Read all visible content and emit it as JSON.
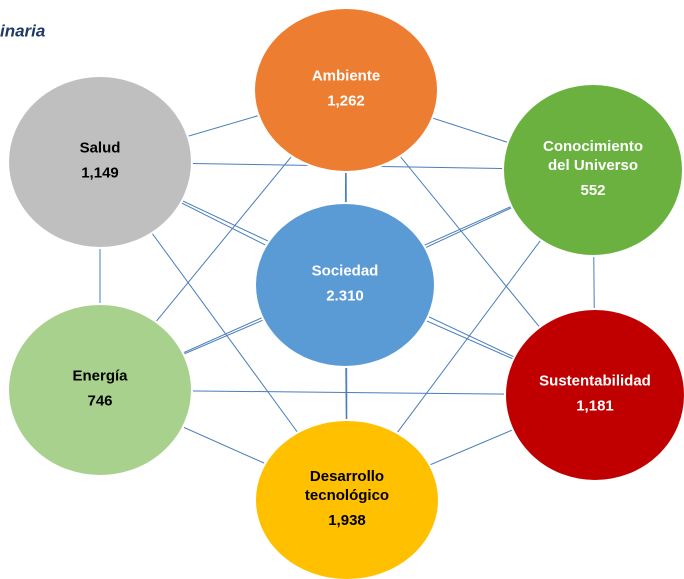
{
  "title": "inaria",
  "nodes": [
    {
      "label": [
        "Ambiente"
      ],
      "value": "1,262"
    },
    {
      "label": [
        "Salud"
      ],
      "value": "1,149"
    },
    {
      "label": [
        "Conocimiento",
        "del Universo"
      ],
      "value": "552"
    },
    {
      "label": [
        "Sociedad"
      ],
      "value": "2.310"
    },
    {
      "label": [
        "Energía"
      ],
      "value": "746"
    },
    {
      "label": [
        "Sustentabilidad"
      ],
      "value": "1,181"
    },
    {
      "label": [
        "Desarrollo",
        "tecnológico"
      ],
      "value": "1,938"
    }
  ]
}
